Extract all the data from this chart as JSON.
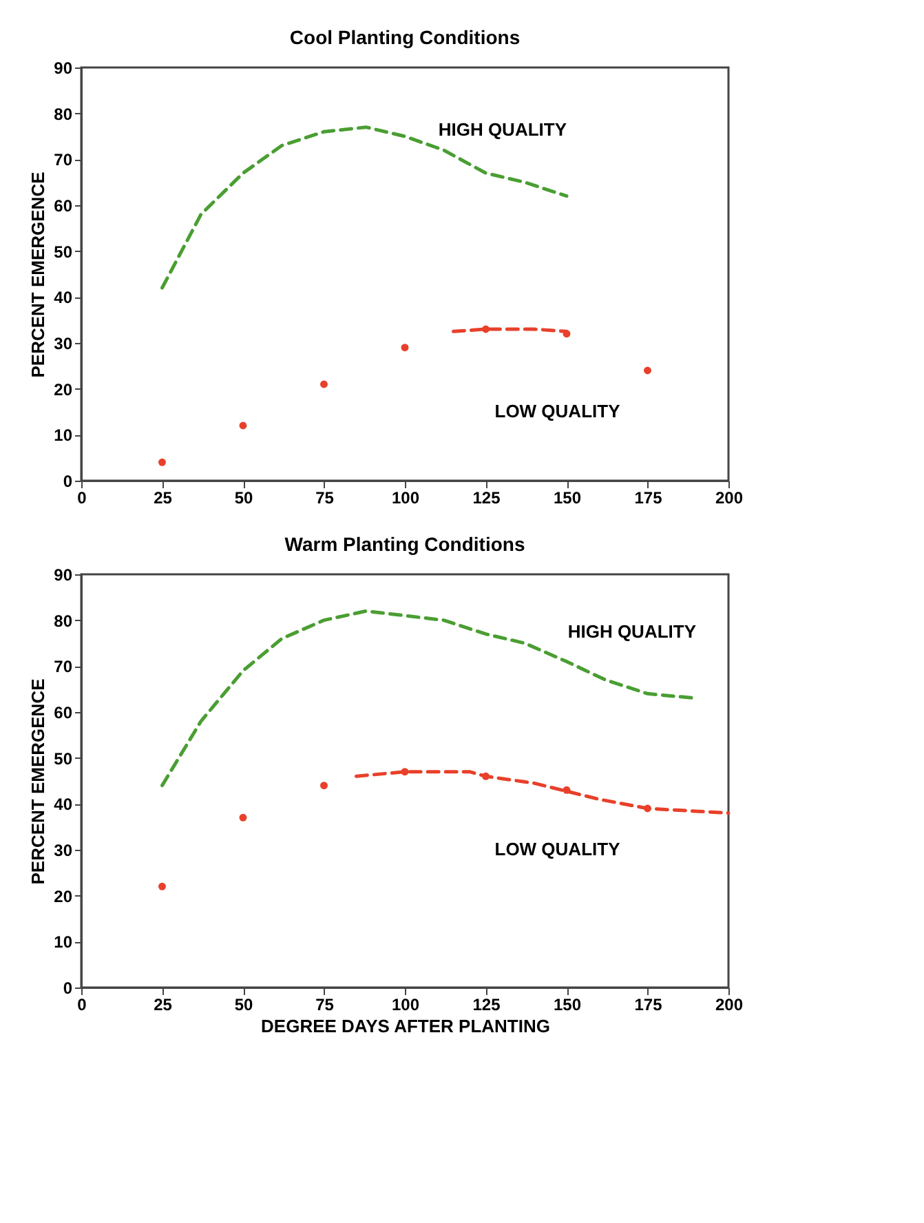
{
  "chart_data": [
    {
      "type": "line",
      "title": "Cool Planting Conditions",
      "ylabel": "PERCENT EMERGENCE",
      "xlim": [
        0,
        200
      ],
      "ylim": [
        0,
        90
      ],
      "xticks": [
        0,
        25,
        50,
        75,
        100,
        125,
        150,
        175,
        200
      ],
      "yticks": [
        0,
        10,
        20,
        30,
        40,
        50,
        60,
        70,
        80,
        90
      ],
      "grid": false,
      "legend": false,
      "line_style": "dashed",
      "series": [
        {
          "name": "HIGH QUALITY",
          "color": "#4a9e32",
          "x": [
            25,
            37,
            50,
            62,
            75,
            88,
            100,
            112,
            125,
            137,
            150
          ],
          "values": [
            42,
            58,
            67,
            73,
            76,
            77,
            75,
            72,
            67,
            65,
            62
          ]
        },
        {
          "type": "line",
          "color": "#e8402a",
          "x": [
            115,
            125,
            140,
            150
          ],
          "values": [
            32.5,
            33,
            33,
            32.5
          ]
        },
        {
          "name": "LOW QUALITY",
          "type": "scatter",
          "marker": "circle",
          "color": "#e8402a",
          "x": [
            25,
            50,
            75,
            100,
            125,
            150,
            175
          ],
          "values": [
            4,
            12,
            21,
            29,
            33,
            32,
            24
          ]
        }
      ]
    },
    {
      "type": "line",
      "title": "Warm Planting Conditions",
      "xlabel": "DEGREE DAYS AFTER PLANTING",
      "ylabel": "PERCENT EMERGENCE",
      "xlim": [
        0,
        200
      ],
      "ylim": [
        0,
        90
      ],
      "xticks": [
        0,
        25,
        50,
        75,
        100,
        125,
        150,
        175,
        200
      ],
      "yticks": [
        0,
        10,
        20,
        30,
        40,
        50,
        60,
        70,
        80,
        90
      ],
      "grid": false,
      "legend": false,
      "line_style": "dashed",
      "series": [
        {
          "name": "HIGH QUALITY",
          "color": "#4a9e32",
          "x": [
            25,
            37,
            50,
            62,
            75,
            88,
            100,
            112,
            125,
            137,
            150,
            162,
            175,
            190
          ],
          "values": [
            44,
            58,
            69,
            76,
            80,
            82,
            81,
            80,
            77,
            75,
            71,
            67,
            64,
            63
          ]
        },
        {
          "type": "line",
          "color": "#e8402a",
          "x": [
            85,
            100,
            120,
            125,
            140,
            160,
            175,
            200
          ],
          "values": [
            46,
            47,
            47,
            46,
            44.5,
            41,
            39,
            38
          ]
        },
        {
          "name": "LOW QUALITY",
          "type": "scatter",
          "marker": "circle",
          "color": "#e8402a",
          "x": [
            25,
            50,
            75,
            100,
            125,
            150,
            175
          ],
          "values": [
            22,
            37,
            44,
            47,
            46,
            43,
            39
          ]
        }
      ]
    }
  ]
}
